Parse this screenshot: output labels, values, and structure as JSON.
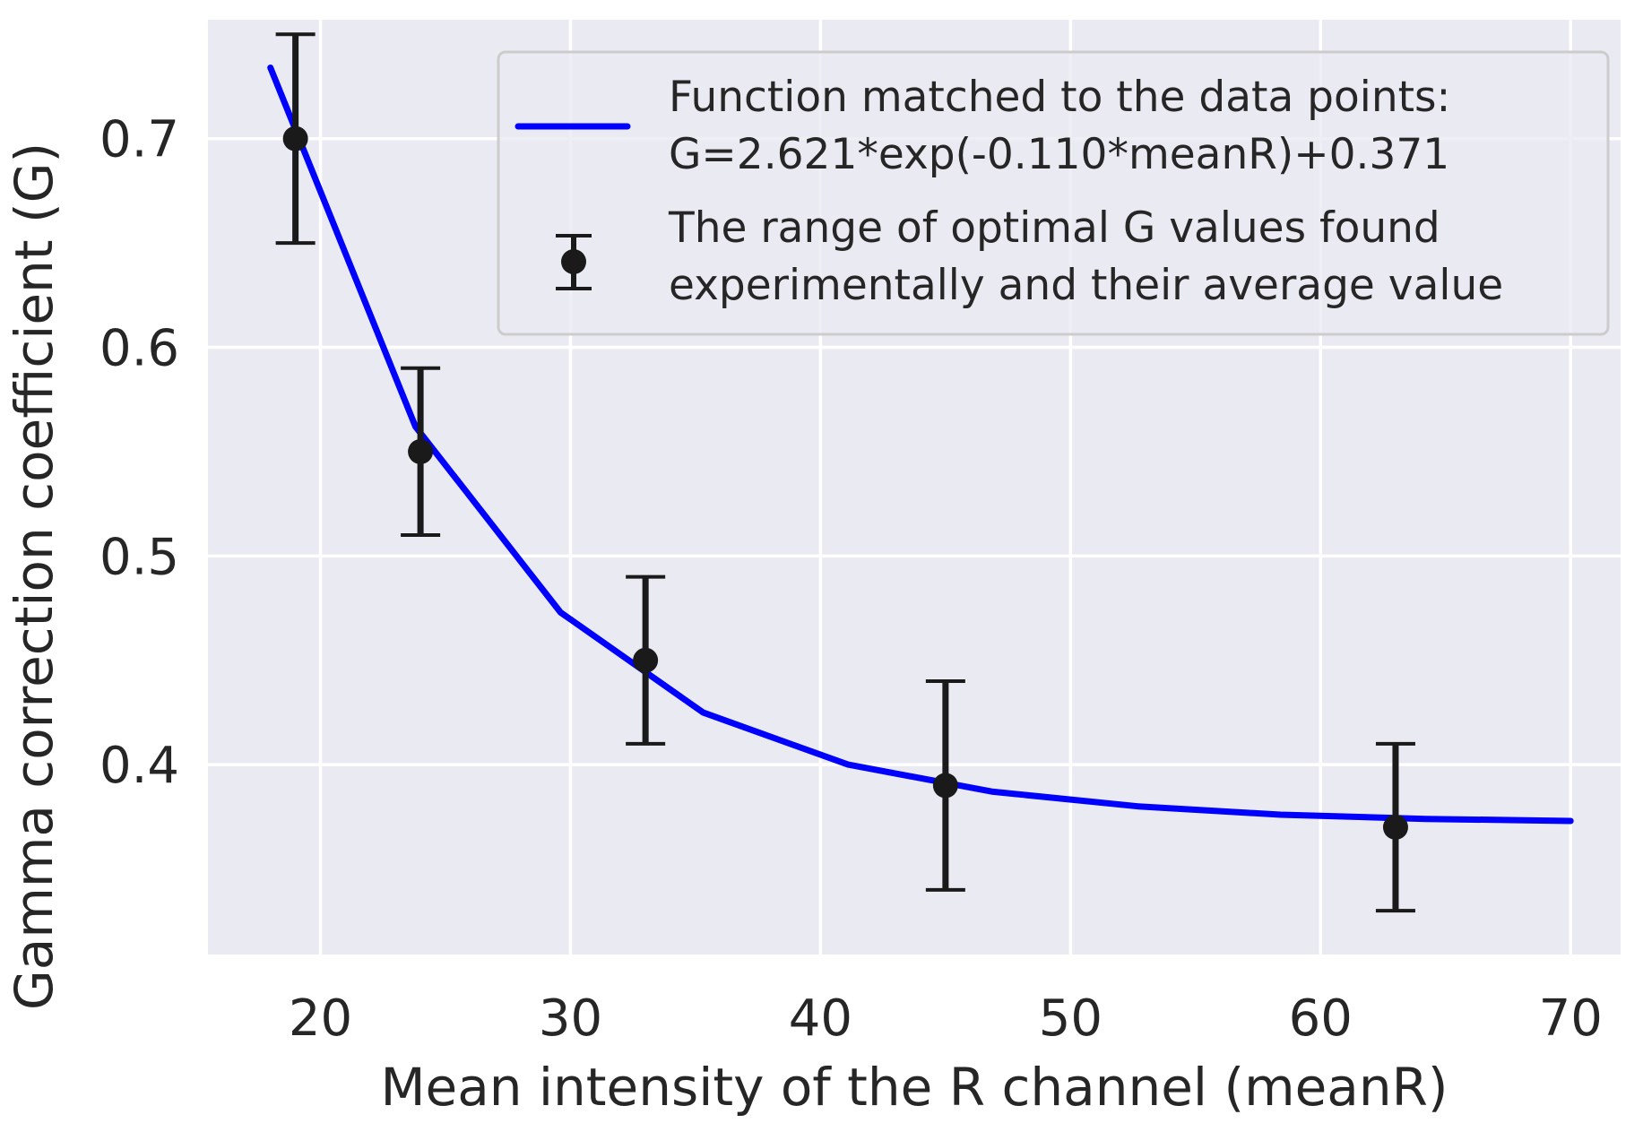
{
  "chart_data": {
    "type": "line",
    "xlabel": "Mean intensity of the R channel (meanR)",
    "ylabel": "Gamma correction coefficient (G)",
    "xlim": [
      15.5,
      72
    ],
    "ylim": [
      0.309,
      0.757
    ],
    "xticks": [
      20,
      30,
      40,
      50,
      60,
      70
    ],
    "yticks": [
      0.4,
      0.5,
      0.6,
      0.7
    ],
    "xtick_labels": [
      "20",
      "30",
      "40",
      "50",
      "60",
      "70"
    ],
    "ytick_labels": [
      "0.4",
      "0.5",
      "0.6",
      "0.7"
    ],
    "grid": true,
    "background": "#eaeaf2",
    "legend_position": "top-right",
    "series": [
      {
        "name": "Function matched to the data points:",
        "name_line2": "G=2.621*exp(-0.110*meanR)+0.371",
        "kind": "line",
        "color": "#0000ff",
        "x": [
          18,
          23.8,
          29.6,
          35.3,
          41.1,
          46.9,
          52.7,
          58.4,
          64.2,
          70
        ],
        "y": [
          0.734,
          0.562,
          0.473,
          0.425,
          0.4,
          0.387,
          0.38,
          0.376,
          0.374,
          0.373
        ]
      },
      {
        "name": "The range of optimal G values found",
        "name_line2": "experimentally and their average value",
        "kind": "errorbar",
        "color": "#1a1a1a",
        "x": [
          19,
          24,
          33,
          45,
          63
        ],
        "y": [
          0.7,
          0.55,
          0.45,
          0.39,
          0.37
        ],
        "yerr_low": [
          0.65,
          0.51,
          0.41,
          0.34,
          0.33
        ],
        "yerr_high": [
          0.75,
          0.59,
          0.49,
          0.44,
          0.41
        ]
      }
    ]
  }
}
